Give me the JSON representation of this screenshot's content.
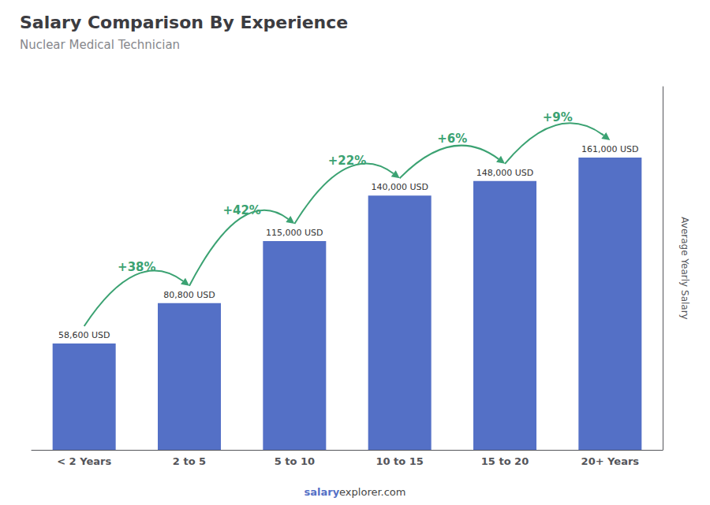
{
  "chart_data": {
    "type": "bar",
    "title": "Salary Comparison By Experience",
    "subtitle": "Nuclear Medical Technician",
    "categories": [
      "< 2 Years",
      "2 to 5",
      "5 to 10",
      "10 to 15",
      "15 to 20",
      "20+ Years"
    ],
    "values": [
      58600,
      80800,
      115000,
      140000,
      148000,
      161000
    ],
    "value_labels": [
      "58,600 USD",
      "80,800 USD",
      "115,000 USD",
      "140,000 USD",
      "148,000 USD",
      "161,000 USD"
    ],
    "data_labels": true,
    "ylabel": "Average Yearly Salary",
    "ylim": [
      0,
      200000
    ],
    "tick_labels": "x",
    "grid": false,
    "annotations": [
      "+38%",
      "+42%",
      "+22%",
      "+6%",
      "+9%"
    ],
    "footer": [
      "salary",
      "explorer.com"
    ]
  }
}
